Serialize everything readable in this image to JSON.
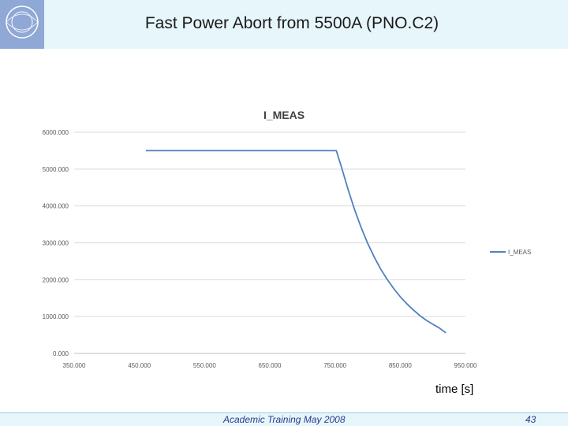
{
  "slide": {
    "title": "Fast Power Abort from 5500A (PNO.C2)",
    "x_axis_caption": "time [s]",
    "footer": "Academic Training May 2008",
    "page_number": "43"
  },
  "logo": {
    "text": "CERN",
    "color": "#8fa8d6"
  },
  "colors": {
    "header_band": "#e6f6fb",
    "series": "#4f81bd",
    "grid": "#d9d9d9"
  },
  "chart_data": {
    "type": "line",
    "title": "I_MEAS",
    "xlabel": "",
    "ylabel": "",
    "xlim": [
      350,
      950
    ],
    "ylim": [
      0,
      6000
    ],
    "x_ticks": [
      "350.000",
      "450.000",
      "550.000",
      "650.000",
      "750.000",
      "850.000",
      "950.000"
    ],
    "y_ticks": [
      "0.000",
      "1000.000",
      "2000.000",
      "3000.000",
      "4000.000",
      "5000.000",
      "6000.000"
    ],
    "grid": true,
    "legend": "right",
    "series": [
      {
        "name": "I_MEAS",
        "x": [
          460,
          500,
          550,
          600,
          650,
          700,
          752,
          760,
          770,
          780,
          790,
          800,
          810,
          820,
          830,
          840,
          850,
          860,
          870,
          880,
          890,
          900,
          910,
          920
        ],
        "y": [
          5500,
          5500,
          5500,
          5500,
          5500,
          5500,
          5500,
          5050,
          4450,
          3900,
          3420,
          2990,
          2620,
          2290,
          2010,
          1760,
          1540,
          1350,
          1180,
          1030,
          900,
          790,
          690,
          560
        ]
      }
    ]
  }
}
